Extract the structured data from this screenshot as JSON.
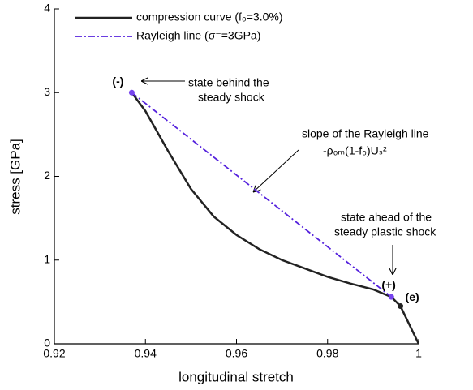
{
  "chart_data": {
    "type": "line",
    "xlabel": "longitudinal stretch",
    "ylabel": "stress [GPa]",
    "xlim": [
      0.92,
      1
    ],
    "ylim": [
      0,
      4
    ],
    "xticks": [
      0.92,
      0.94,
      0.96,
      0.98,
      1
    ],
    "yticks": [
      0,
      1,
      2,
      3,
      4
    ],
    "series": [
      {
        "name": "compression curve (f₀=3.0%)",
        "color": "#222222",
        "style": "solid",
        "x": [
          0.937,
          0.94,
          0.945,
          0.95,
          0.955,
          0.96,
          0.965,
          0.97,
          0.975,
          0.98,
          0.985,
          0.99,
          0.994,
          0.996,
          1
        ],
        "values": [
          3.0,
          2.78,
          2.3,
          1.85,
          1.52,
          1.3,
          1.13,
          1.0,
          0.9,
          0.8,
          0.72,
          0.65,
          0.56,
          0.45,
          0
        ]
      },
      {
        "name": "Rayleigh line (σ⁻=3GPa)",
        "color": "#5522dd",
        "style": "dashdot",
        "x": [
          0.937,
          0.994
        ],
        "values": [
          3.0,
          0.56
        ]
      }
    ],
    "points": [
      {
        "label": "(-)",
        "x": 0.937,
        "y": 3.0,
        "color": "#7744ee"
      },
      {
        "label": "(+)",
        "x": 0.994,
        "y": 0.56,
        "color": "#7744ee"
      },
      {
        "label": "(e)",
        "x": 0.996,
        "y": 0.45,
        "color": "#222222"
      }
    ],
    "annotations": {
      "behind": [
        "state behind the",
        "steady shock"
      ],
      "slope": [
        "slope of the Rayleigh line",
        "-ρ₀ₘ(1-f₀)Uₛ²"
      ],
      "ahead": [
        "state ahead of the",
        "steady plastic shock"
      ]
    }
  }
}
